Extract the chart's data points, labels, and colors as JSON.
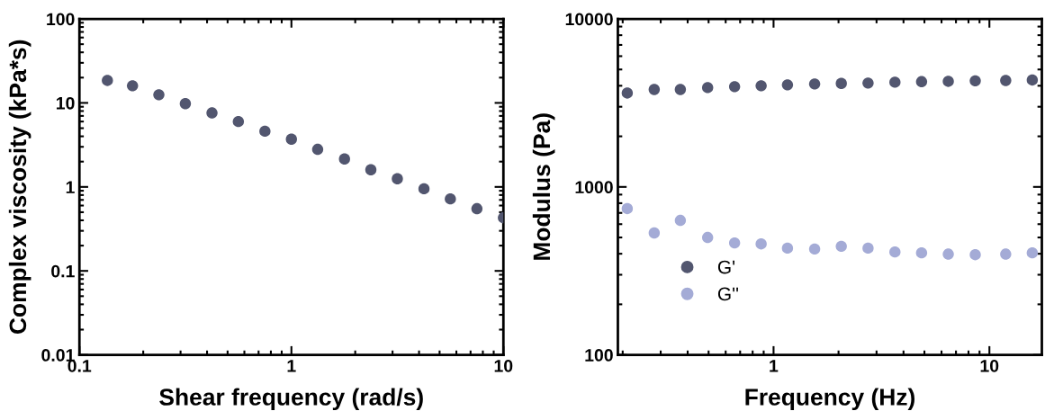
{
  "chart_data": [
    {
      "type": "scatter",
      "xlabel": "Shear frequency (rad/s)",
      "ylabel": "Complex viscosity (kPa*s)",
      "log": "xy",
      "xlim": [
        0.1,
        10
      ],
      "ylim": [
        0.01,
        100
      ],
      "xticks": [
        0.1,
        1,
        10
      ],
      "yticks": [
        0.01,
        0.1,
        1,
        10,
        100
      ],
      "marker": "circle",
      "grid": false,
      "legend": false,
      "x": [
        0.1355,
        0.178,
        0.237,
        0.316,
        0.422,
        0.562,
        0.75,
        1,
        1.33,
        1.78,
        2.37,
        3.16,
        4.22,
        5.62,
        7.5,
        10
      ],
      "series": [
        {
          "color": "#52566f",
          "values": [
            18.5,
            16,
            12.5,
            9.8,
            7.6,
            6,
            4.6,
            3.7,
            2.8,
            2.15,
            1.6,
            1.25,
            0.95,
            0.72,
            0.55,
            0.43
          ]
        }
      ]
    },
    {
      "type": "scatter",
      "xlabel": "Frequency (Hz)",
      "ylabel": "Modulus (Pa)",
      "log": "xy",
      "xlim": [
        0.19,
        17.5
      ],
      "ylim": [
        100,
        10000
      ],
      "xticks": [
        1,
        10
      ],
      "yticks": [
        100,
        1000,
        10000
      ],
      "marker": "circle",
      "grid": false,
      "legend": "lower left",
      "x": [
        0.21,
        0.28,
        0.37,
        0.495,
        0.66,
        0.876,
        1.16,
        1.55,
        2.06,
        2.74,
        3.65,
        4.85,
        6.45,
        8.6,
        11.9,
        15.8
      ],
      "series": [
        {
          "name": "G'",
          "color": "#52566f",
          "values": [
            3620,
            3800,
            3800,
            3900,
            3950,
            4000,
            4050,
            4100,
            4130,
            4150,
            4200,
            4230,
            4250,
            4280,
            4300,
            4330
          ]
        },
        {
          "name": "G''",
          "color": "#a4abd6",
          "values": [
            743,
            532,
            632,
            500,
            464,
            458,
            432,
            427,
            443,
            432,
            410,
            405,
            398,
            395,
            398,
            405
          ]
        }
      ]
    }
  ]
}
